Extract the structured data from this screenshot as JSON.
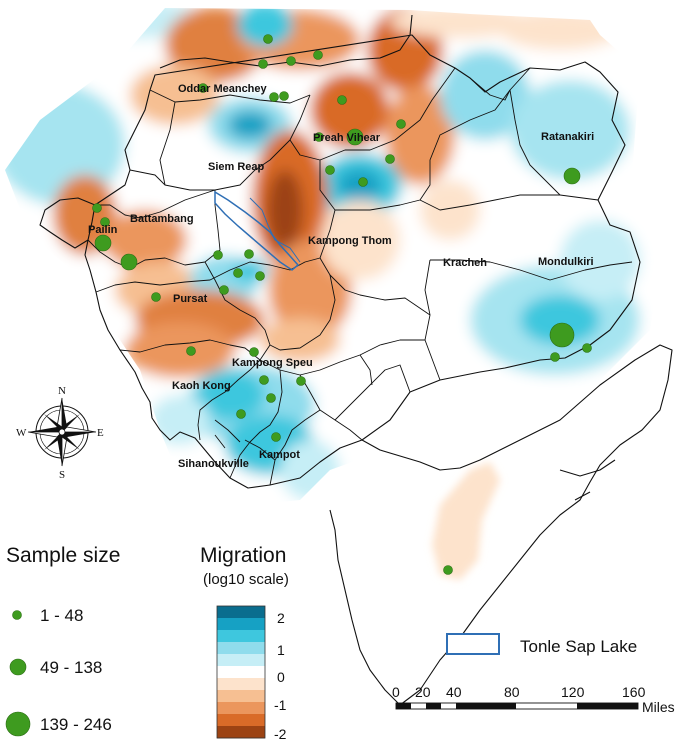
{
  "map": {
    "provinces": [
      {
        "name": "Oddar Meanchey"
      },
      {
        "name": "Preah Vihear"
      },
      {
        "name": "Siem Reap"
      },
      {
        "name": "Ratanakiri"
      },
      {
        "name": "Battambang"
      },
      {
        "name": "Pailin"
      },
      {
        "name": "Kampong Thom"
      },
      {
        "name": "Kracheh"
      },
      {
        "name": "Mondulkiri"
      },
      {
        "name": "Pursat"
      },
      {
        "name": "Kampong Speu"
      },
      {
        "name": "Kaoh Kong"
      },
      {
        "name": "Kampot"
      },
      {
        "name": "Sihanoukville"
      }
    ],
    "compass": {
      "north": "N",
      "south": "S",
      "east": "E",
      "west": "W"
    }
  },
  "sample_legend": {
    "title": "Sample size",
    "items": [
      {
        "label": "1 - 48"
      },
      {
        "label": "49 - 138"
      },
      {
        "label": "139 - 246"
      }
    ],
    "marker_color": "#3e9b1f"
  },
  "migration_legend": {
    "title": "Migration",
    "subtitle": "(log10 scale)",
    "ticks": [
      "2",
      "1",
      "0",
      "-1",
      "-2"
    ],
    "colors": [
      "#0a6d8e",
      "#16a1c4",
      "#3ec7de",
      "#8fdcec",
      "#c6eef6",
      "#ffffff",
      "#fde3cc",
      "#f6bf92",
      "#eb965d",
      "#d96b28",
      "#9c4313"
    ]
  },
  "lake_legend": {
    "label": "Tonle Sap Lake",
    "color": "#2f6fb5"
  },
  "scale_bar": {
    "ticks": [
      "0",
      "20",
      "40",
      "80",
      "120",
      "160"
    ],
    "unit": "Miles"
  }
}
